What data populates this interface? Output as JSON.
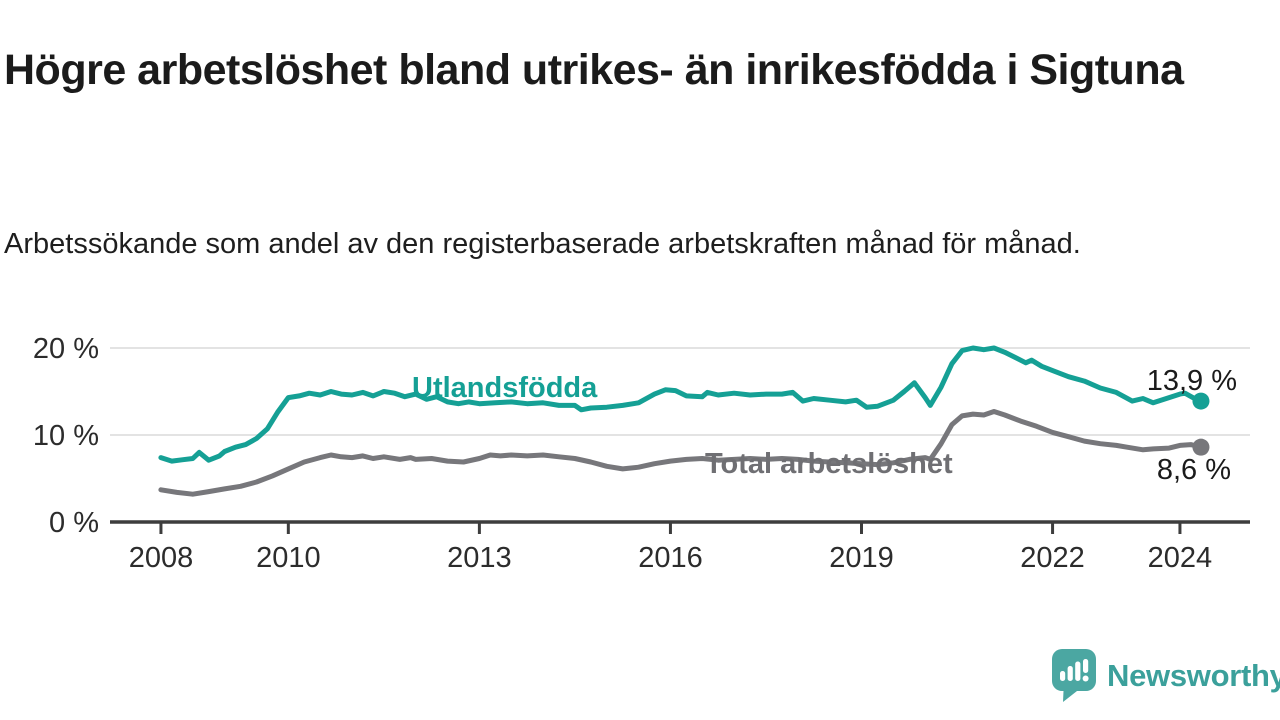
{
  "header": {
    "title": "Högre arbetslöshet bland utrikes- än inrikesfödda i Sigtuna",
    "subtitle": "Arbetssökande som andel av den registerbaserade arbetskraften månad för månad."
  },
  "chart_data": {
    "type": "line",
    "title": "Högre arbetslöshet bland utrikes- än inrikesfödda i Sigtuna",
    "subtitle": "Arbetssökande som andel av den registerbaserade arbetskraften månad för månad.",
    "grid": "horizontal",
    "xlim": [
      2007.2,
      2025.1
    ],
    "ylim": [
      0,
      22
    ],
    "x_ticks": [
      {
        "value": 2008,
        "label": "2008"
      },
      {
        "value": 2010,
        "label": "2010"
      },
      {
        "value": 2013,
        "label": "2013"
      },
      {
        "value": 2016,
        "label": "2016"
      },
      {
        "value": 2019,
        "label": "2019"
      },
      {
        "value": 2022,
        "label": "2022"
      },
      {
        "value": 2024,
        "label": "2024"
      }
    ],
    "y_ticks": [
      {
        "value": 0,
        "label": "0 %"
      },
      {
        "value": 10,
        "label": "10 %"
      },
      {
        "value": 20,
        "label": "20 %"
      }
    ],
    "colors": {
      "axis": "#3d3d3d",
      "grid": "#e3e3e3",
      "teal": "#15a095",
      "gray": "#77777b",
      "teal_label": "#15a095",
      "gray_label": "#6f6f73"
    },
    "series": [
      {
        "name": "Utlandsfödda",
        "color": "#15a095",
        "end_value": 13.9,
        "end_label": "13,9 %",
        "points": [
          [
            2008.0,
            7.4
          ],
          [
            2008.17,
            7.0
          ],
          [
            2008.33,
            7.15
          ],
          [
            2008.5,
            7.3
          ],
          [
            2008.6,
            8.0
          ],
          [
            2008.75,
            7.1
          ],
          [
            2008.92,
            7.6
          ],
          [
            2009.0,
            8.1
          ],
          [
            2009.17,
            8.6
          ],
          [
            2009.33,
            8.9
          ],
          [
            2009.5,
            9.6
          ],
          [
            2009.67,
            10.7
          ],
          [
            2009.83,
            12.6
          ],
          [
            2010.0,
            14.3
          ],
          [
            2010.17,
            14.5
          ],
          [
            2010.33,
            14.8
          ],
          [
            2010.5,
            14.6
          ],
          [
            2010.67,
            15.0
          ],
          [
            2010.83,
            14.7
          ],
          [
            2011.0,
            14.6
          ],
          [
            2011.17,
            14.9
          ],
          [
            2011.33,
            14.5
          ],
          [
            2011.5,
            15.0
          ],
          [
            2011.67,
            14.8
          ],
          [
            2011.83,
            14.4
          ],
          [
            2012.0,
            14.7
          ],
          [
            2012.17,
            14.1
          ],
          [
            2012.33,
            14.4
          ],
          [
            2012.5,
            13.8
          ],
          [
            2012.67,
            13.6
          ],
          [
            2012.83,
            13.8
          ],
          [
            2013.0,
            13.6
          ],
          [
            2013.25,
            13.7
          ],
          [
            2013.5,
            13.8
          ],
          [
            2013.75,
            13.6
          ],
          [
            2014.0,
            13.7
          ],
          [
            2014.25,
            13.4
          ],
          [
            2014.5,
            13.4
          ],
          [
            2014.6,
            12.9
          ],
          [
            2014.75,
            13.1
          ],
          [
            2015.0,
            13.2
          ],
          [
            2015.25,
            13.4
          ],
          [
            2015.5,
            13.7
          ],
          [
            2015.75,
            14.7
          ],
          [
            2015.92,
            15.2
          ],
          [
            2016.08,
            15.1
          ],
          [
            2016.25,
            14.5
          ],
          [
            2016.5,
            14.4
          ],
          [
            2016.58,
            14.9
          ],
          [
            2016.75,
            14.6
          ],
          [
            2017.0,
            14.8
          ],
          [
            2017.25,
            14.6
          ],
          [
            2017.5,
            14.7
          ],
          [
            2017.75,
            14.7
          ],
          [
            2017.92,
            14.9
          ],
          [
            2018.08,
            13.9
          ],
          [
            2018.25,
            14.2
          ],
          [
            2018.5,
            14.0
          ],
          [
            2018.75,
            13.8
          ],
          [
            2018.92,
            14.0
          ],
          [
            2019.08,
            13.2
          ],
          [
            2019.25,
            13.3
          ],
          [
            2019.5,
            14.0
          ],
          [
            2019.67,
            15.0
          ],
          [
            2019.83,
            16.0
          ],
          [
            2020.0,
            14.3
          ],
          [
            2020.08,
            13.4
          ],
          [
            2020.25,
            15.5
          ],
          [
            2020.42,
            18.2
          ],
          [
            2020.58,
            19.7
          ],
          [
            2020.75,
            20.0
          ],
          [
            2020.92,
            19.8
          ],
          [
            2021.08,
            20.0
          ],
          [
            2021.25,
            19.5
          ],
          [
            2021.42,
            18.9
          ],
          [
            2021.58,
            18.3
          ],
          [
            2021.67,
            18.6
          ],
          [
            2021.83,
            17.9
          ],
          [
            2022.0,
            17.4
          ],
          [
            2022.25,
            16.7
          ],
          [
            2022.5,
            16.2
          ],
          [
            2022.75,
            15.4
          ],
          [
            2023.0,
            14.9
          ],
          [
            2023.25,
            13.9
          ],
          [
            2023.42,
            14.2
          ],
          [
            2023.58,
            13.7
          ],
          [
            2023.83,
            14.3
          ],
          [
            2024.0,
            14.7
          ],
          [
            2024.08,
            14.8
          ],
          [
            2024.25,
            14.1
          ],
          [
            2024.33,
            13.9
          ]
        ]
      },
      {
        "name": "Total arbetslöshet",
        "color": "#77777b",
        "end_value": 8.6,
        "end_label": "8,6 %",
        "points": [
          [
            2008.0,
            3.7
          ],
          [
            2008.25,
            3.4
          ],
          [
            2008.5,
            3.2
          ],
          [
            2008.75,
            3.5
          ],
          [
            2009.0,
            3.8
          ],
          [
            2009.25,
            4.1
          ],
          [
            2009.5,
            4.6
          ],
          [
            2009.75,
            5.3
          ],
          [
            2010.0,
            6.1
          ],
          [
            2010.25,
            6.9
          ],
          [
            2010.5,
            7.4
          ],
          [
            2010.67,
            7.7
          ],
          [
            2010.83,
            7.5
          ],
          [
            2011.0,
            7.4
          ],
          [
            2011.17,
            7.6
          ],
          [
            2011.33,
            7.3
          ],
          [
            2011.5,
            7.5
          ],
          [
            2011.75,
            7.2
          ],
          [
            2011.92,
            7.4
          ],
          [
            2012.0,
            7.2
          ],
          [
            2012.25,
            7.3
          ],
          [
            2012.5,
            7.0
          ],
          [
            2012.75,
            6.9
          ],
          [
            2013.0,
            7.3
          ],
          [
            2013.17,
            7.7
          ],
          [
            2013.33,
            7.6
          ],
          [
            2013.5,
            7.7
          ],
          [
            2013.75,
            7.6
          ],
          [
            2014.0,
            7.7
          ],
          [
            2014.25,
            7.5
          ],
          [
            2014.5,
            7.3
          ],
          [
            2014.75,
            6.9
          ],
          [
            2015.0,
            6.4
          ],
          [
            2015.25,
            6.1
          ],
          [
            2015.5,
            6.3
          ],
          [
            2015.75,
            6.7
          ],
          [
            2016.0,
            7.0
          ],
          [
            2016.25,
            7.2
          ],
          [
            2016.5,
            7.3
          ],
          [
            2016.75,
            7.1
          ],
          [
            2017.0,
            7.2
          ],
          [
            2017.25,
            7.3
          ],
          [
            2017.5,
            7.2
          ],
          [
            2017.75,
            7.3
          ],
          [
            2018.0,
            7.2
          ],
          [
            2018.25,
            7.0
          ],
          [
            2018.5,
            6.9
          ],
          [
            2018.75,
            6.8
          ],
          [
            2019.0,
            6.7
          ],
          [
            2019.25,
            6.6
          ],
          [
            2019.5,
            6.8
          ],
          [
            2019.75,
            7.2
          ],
          [
            2020.0,
            7.4
          ],
          [
            2020.08,
            7.2
          ],
          [
            2020.25,
            9.0
          ],
          [
            2020.42,
            11.2
          ],
          [
            2020.58,
            12.2
          ],
          [
            2020.75,
            12.4
          ],
          [
            2020.92,
            12.3
          ],
          [
            2021.08,
            12.7
          ],
          [
            2021.25,
            12.3
          ],
          [
            2021.5,
            11.6
          ],
          [
            2021.75,
            11.0
          ],
          [
            2022.0,
            10.3
          ],
          [
            2022.25,
            9.8
          ],
          [
            2022.5,
            9.3
          ],
          [
            2022.75,
            9.0
          ],
          [
            2023.0,
            8.8
          ],
          [
            2023.17,
            8.6
          ],
          [
            2023.42,
            8.3
          ],
          [
            2023.58,
            8.4
          ],
          [
            2023.83,
            8.5
          ],
          [
            2024.0,
            8.8
          ],
          [
            2024.17,
            8.9
          ],
          [
            2024.33,
            8.6
          ]
        ]
      }
    ]
  },
  "footer": {
    "brand": "Newsworthy",
    "brand_color": "#3ba09b",
    "icon_color": "#4ba7a2"
  }
}
